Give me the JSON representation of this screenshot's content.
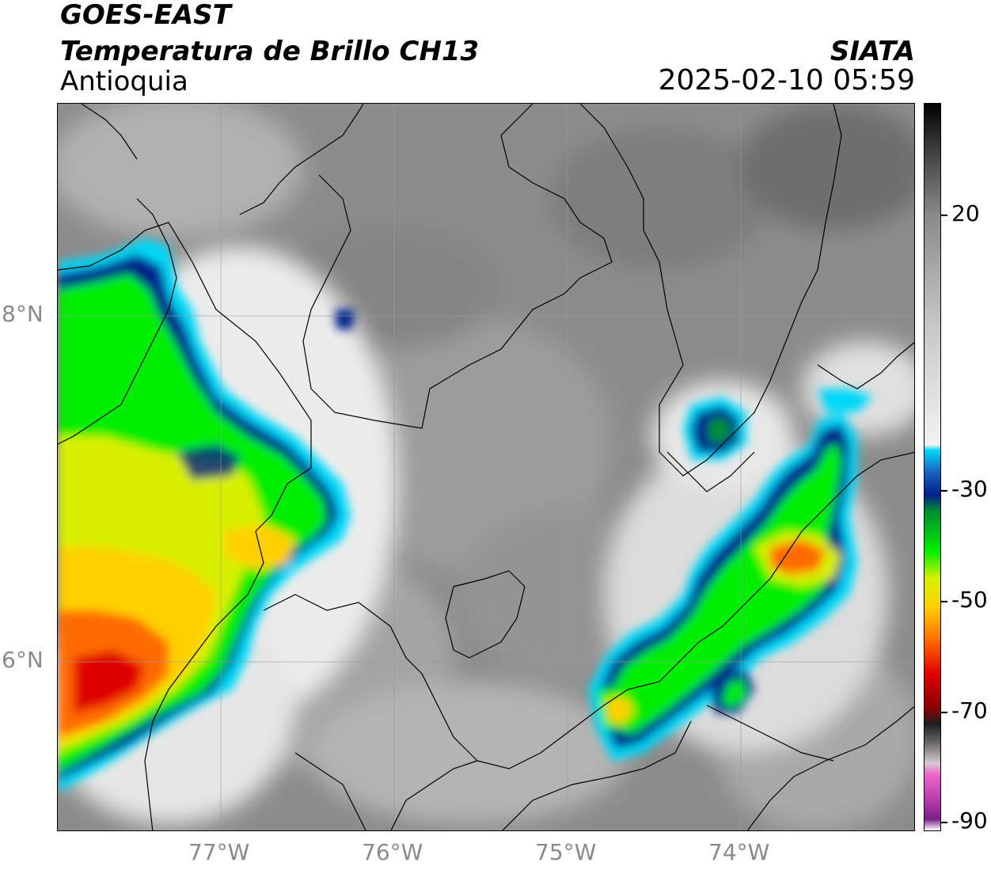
{
  "header": {
    "satellite": "GOES-EAST",
    "product": "Temperatura de Brillo CH13",
    "region": "Antioquia",
    "agency": "SIATA",
    "timestamp": "2025-02-10 05:59"
  },
  "map": {
    "lat_labels": [
      "8°N",
      "6°N"
    ],
    "lon_labels": [
      "77°W",
      "76°W",
      "75°W",
      "74°W"
    ],
    "extent": {
      "lon_min": -77.95,
      "lon_max": -73.0,
      "lat_min": 5.0,
      "lat_max": 9.2
    }
  },
  "colorbar": {
    "ticks": [
      "20",
      "-30",
      "-50",
      "-70",
      "-90"
    ],
    "range": [
      -90,
      40
    ],
    "stops": [
      {
        "t": -90,
        "color": "#ffffff"
      },
      {
        "t": -88,
        "color": "#7a1f8a"
      },
      {
        "t": -84,
        "color": "#c040b0"
      },
      {
        "t": -80,
        "color": "#ee66cc"
      },
      {
        "t": -78,
        "color": "#d6c8d0"
      },
      {
        "t": -74,
        "color": "#606060"
      },
      {
        "t": -71,
        "color": "#202020"
      },
      {
        "t": -68,
        "color": "#8b0000"
      },
      {
        "t": -62,
        "color": "#e00000"
      },
      {
        "t": -56,
        "color": "#ff6a00"
      },
      {
        "t": -50,
        "color": "#ffd000"
      },
      {
        "t": -45,
        "color": "#d8f000"
      },
      {
        "t": -40,
        "color": "#00ee00"
      },
      {
        "t": -33,
        "color": "#009030"
      },
      {
        "t": -30,
        "color": "#00208a"
      },
      {
        "t": -26,
        "color": "#1a60c0"
      },
      {
        "t": -22,
        "color": "#00d8f8"
      },
      {
        "t": -21,
        "color": "#f2f2f2"
      },
      {
        "t": 0,
        "color": "#c8c8c8"
      },
      {
        "t": 20,
        "color": "#8a8a8a"
      },
      {
        "t": 30,
        "color": "#4a4a4a"
      },
      {
        "t": 40,
        "color": "#000000"
      }
    ]
  }
}
